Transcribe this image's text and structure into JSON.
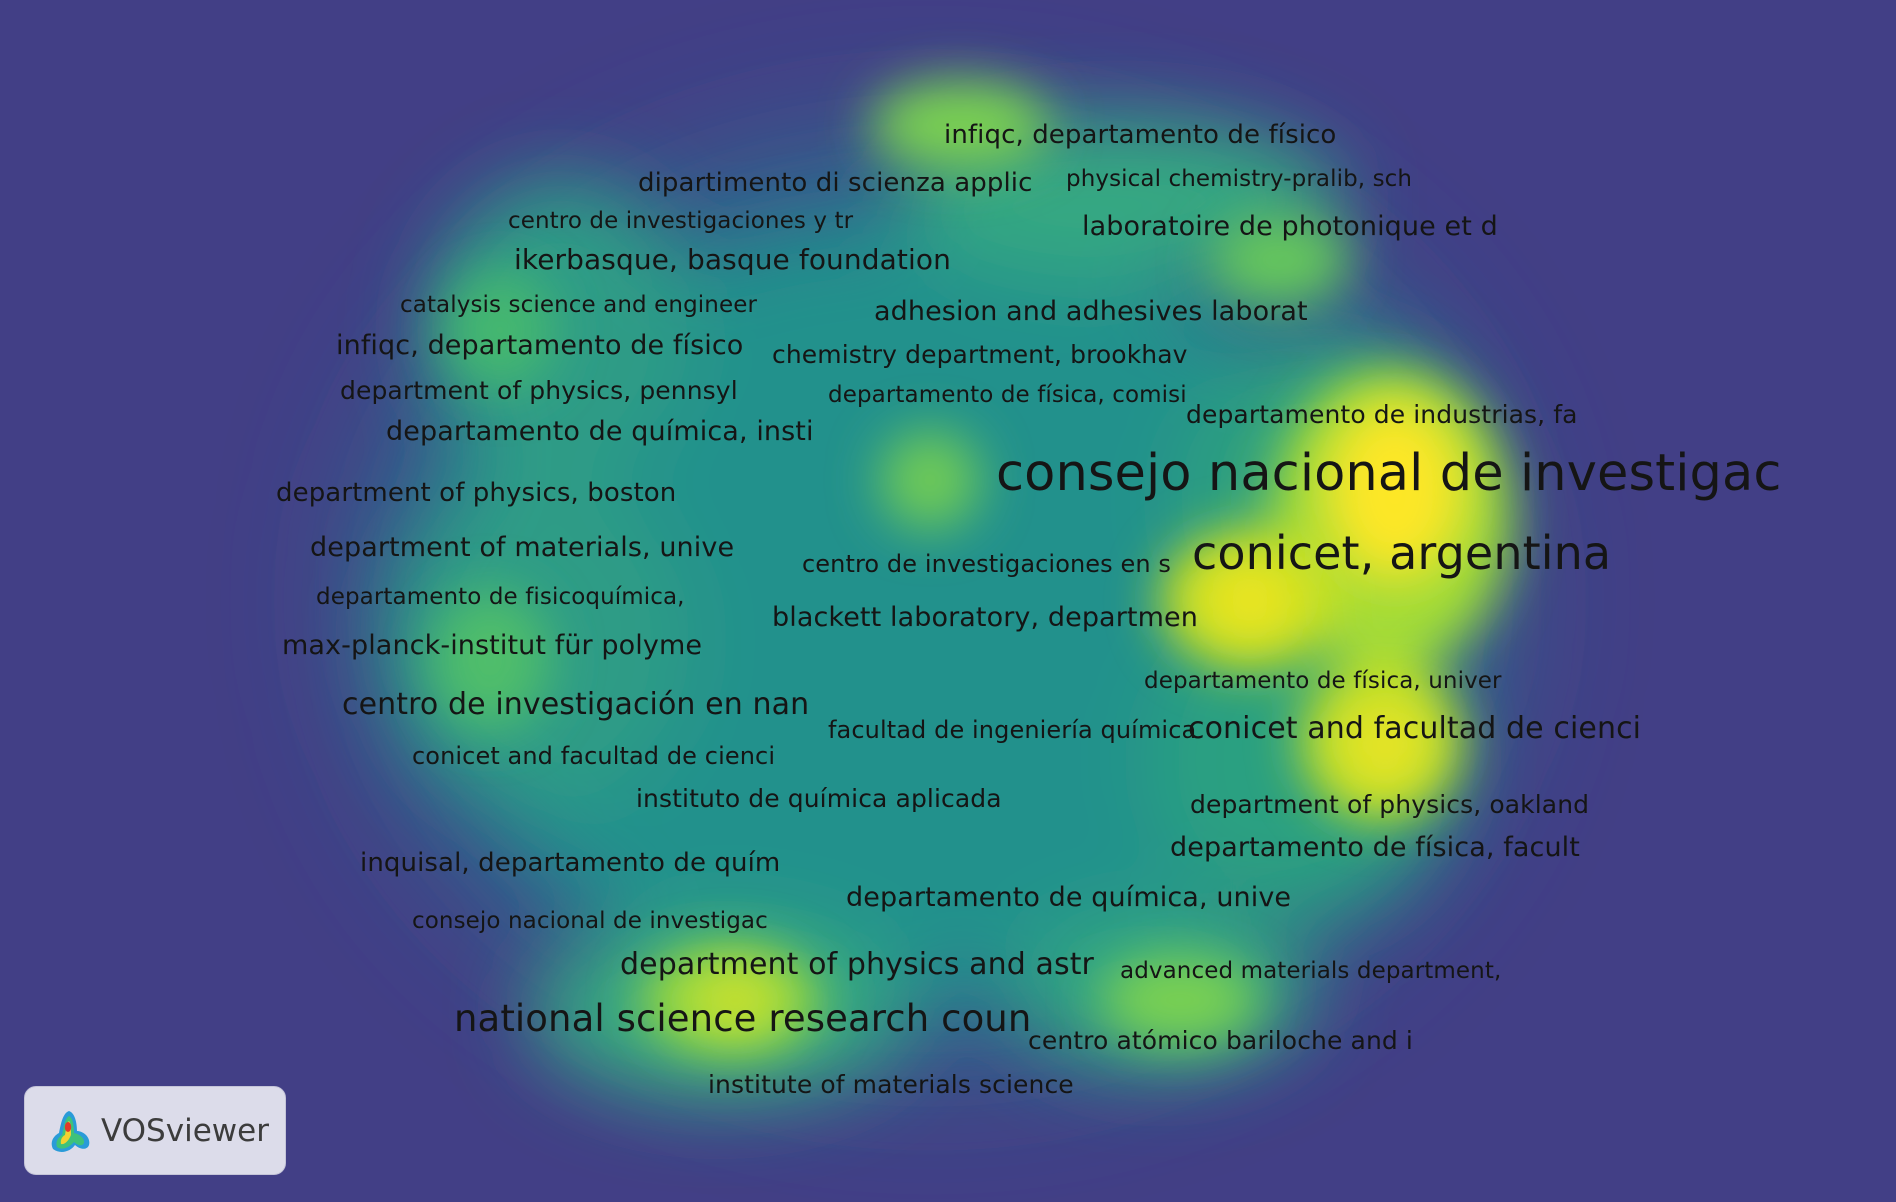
{
  "app": {
    "name": "VOSviewer",
    "view": "density-visualization"
  },
  "colors": {
    "background": "#423f86",
    "low": "#2a7f8e",
    "mid": "#22a884",
    "high": "#7ad151",
    "peak": "#fde725",
    "label": "#151515"
  },
  "labels": [
    {
      "text": "infiqc, departamento de físico",
      "weight": "medium"
    },
    {
      "text": "dipartimento di scienza applic",
      "weight": "medium"
    },
    {
      "text": "physical chemistry-pralib, sch",
      "weight": "small"
    },
    {
      "text": "centro de investigaciones y tr",
      "weight": "small"
    },
    {
      "text": "laboratoire de photonique et d",
      "weight": "medium"
    },
    {
      "text": "ikerbasque, basque foundation",
      "weight": "medium"
    },
    {
      "text": "catalysis science and engineer",
      "weight": "small"
    },
    {
      "text": "adhesion and adhesives laborat",
      "weight": "medium"
    },
    {
      "text": "infiqc, departamento de físico",
      "weight": "medium"
    },
    {
      "text": "chemistry department, brookhav",
      "weight": "medium"
    },
    {
      "text": "department of physics, pennsyl",
      "weight": "medium"
    },
    {
      "text": "departamento de física, comisi",
      "weight": "small"
    },
    {
      "text": "departamento de industrias, fa",
      "weight": "medium"
    },
    {
      "text": "departamento de química, insti",
      "weight": "medium"
    },
    {
      "text": "consejo nacional de investigac",
      "weight": "largest"
    },
    {
      "text": "department of physics, boston",
      "weight": "medium"
    },
    {
      "text": "conicet, argentina",
      "weight": "large"
    },
    {
      "text": "department of materials, unive",
      "weight": "medium"
    },
    {
      "text": "centro de investigaciones en s",
      "weight": "medium"
    },
    {
      "text": "departamento de fisicoquímica,",
      "weight": "small"
    },
    {
      "text": "blackett laboratory, departmen",
      "weight": "medium"
    },
    {
      "text": "max-planck-institut für polyme",
      "weight": "medium"
    },
    {
      "text": "departamento de física, univer",
      "weight": "small"
    },
    {
      "text": "centro de investigación en nan",
      "weight": "medium-large"
    },
    {
      "text": "facultad de ingeniería química",
      "weight": "medium"
    },
    {
      "text": "conicet and facultad de cienci",
      "weight": "medium-large"
    },
    {
      "text": "conicet and facultad de cienci",
      "weight": "small"
    },
    {
      "text": "instituto de química aplicada",
      "weight": "medium"
    },
    {
      "text": "department of physics, oakland",
      "weight": "medium"
    },
    {
      "text": "departamento de física, facult",
      "weight": "medium"
    },
    {
      "text": "inquisal, departamento de quím",
      "weight": "medium"
    },
    {
      "text": "departamento de química, unive",
      "weight": "medium"
    },
    {
      "text": "consejo nacional de investigac",
      "weight": "small"
    },
    {
      "text": "department of physics and astr",
      "weight": "medium-large"
    },
    {
      "text": "advanced materials department,",
      "weight": "small"
    },
    {
      "text": "national science research coun",
      "weight": "large"
    },
    {
      "text": "centro atómico bariloche and i",
      "weight": "medium"
    },
    {
      "text": "institute of materials science",
      "weight": "medium"
    }
  ],
  "logo": {
    "text": "VOSviewer",
    "icon": "vosviewer-logo-icon"
  }
}
